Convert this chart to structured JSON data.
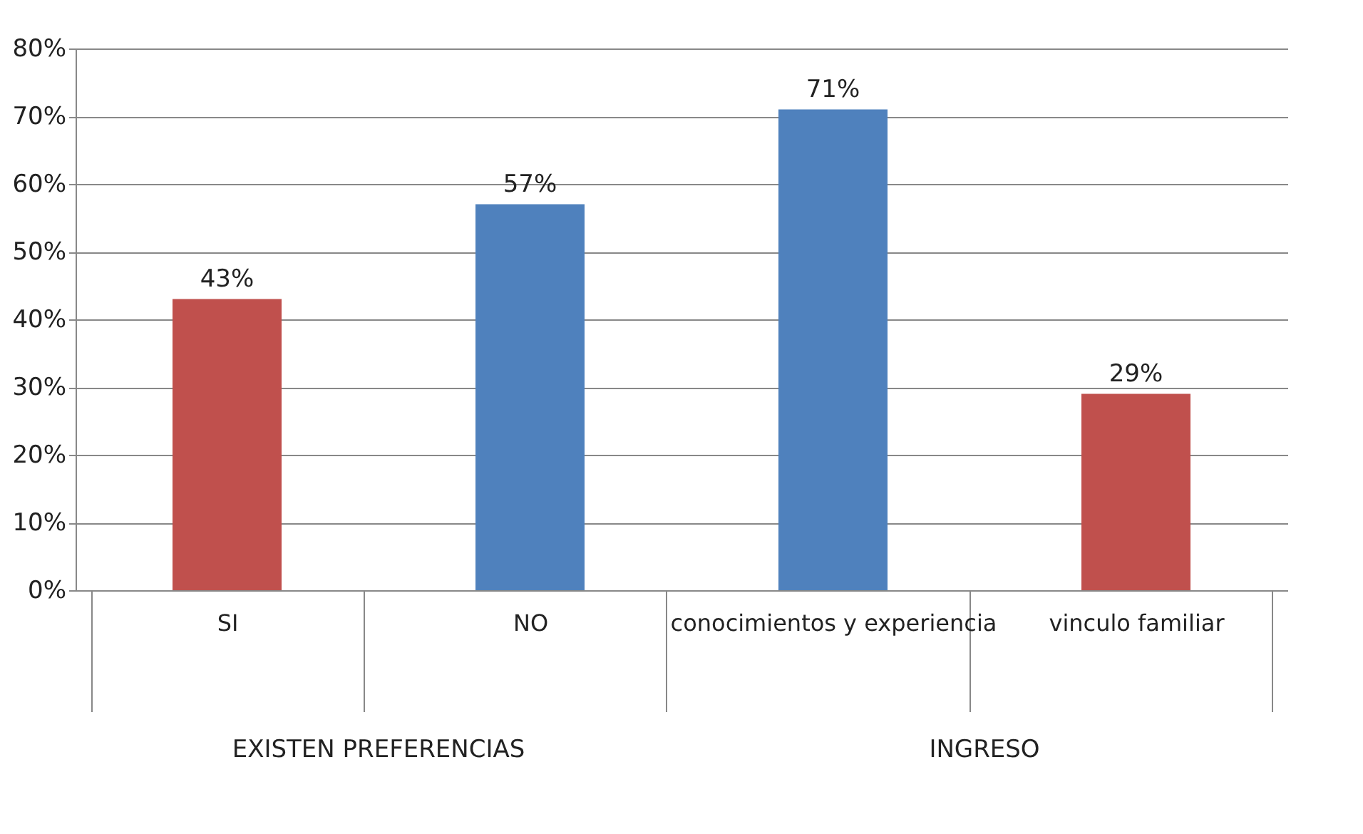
{
  "chart_data": {
    "type": "bar",
    "categories": [
      "SI",
      "NO",
      "conocimientos y experiencia",
      "vinculo familiar"
    ],
    "values": [
      43,
      57,
      71,
      29
    ],
    "colors": [
      "#c0504d",
      "#4f81bd",
      "#4f81bd",
      "#c0504d"
    ],
    "ylim": [
      0,
      80
    ],
    "yticks": [
      {
        "value": 0,
        "label": "0%"
      },
      {
        "value": 10,
        "label": "10%"
      },
      {
        "value": 20,
        "label": "20%"
      },
      {
        "value": 30,
        "label": "30%"
      },
      {
        "value": 40,
        "label": "40%"
      },
      {
        "value": 50,
        "label": "50%"
      },
      {
        "value": 60,
        "label": "60%"
      },
      {
        "value": 70,
        "label": "70%"
      },
      {
        "value": 80,
        "label": "80%"
      }
    ],
    "value_labels": [
      "43%",
      "57%",
      "71%",
      "29%"
    ],
    "annotations": [
      "EXISTEN PREFERENCIAS",
      "INGRESO"
    ],
    "grid": "y"
  }
}
